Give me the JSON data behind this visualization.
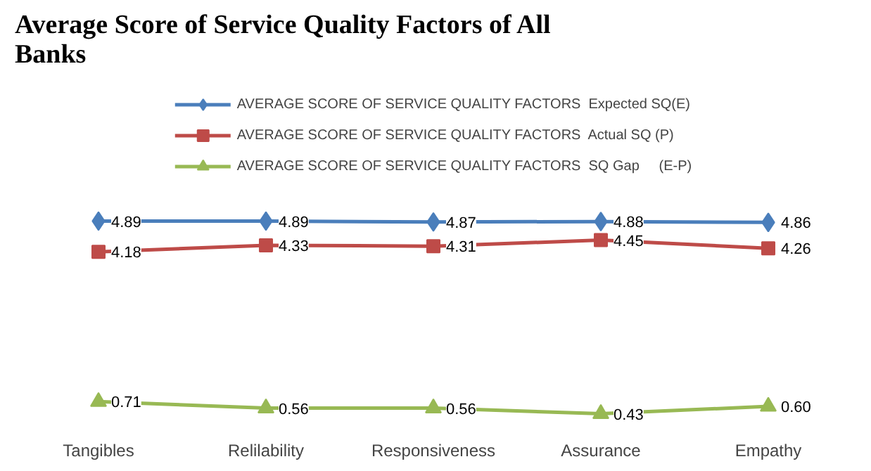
{
  "chart_data": {
    "type": "line",
    "title": "Average Score of Service Quality Factors of All\nBanks",
    "categories": [
      "Tangibles",
      "Relilability",
      "Responsiveness",
      "Assurance",
      "Empathy"
    ],
    "grid": false,
    "legend": "top",
    "series": [
      {
        "name": "AVERAGE SCORE OF SERVICE QUALITY FACTORS  Expected SQ(E)",
        "color": "#4a7ebb",
        "marker": "diamond",
        "values": [
          4.89,
          4.89,
          4.87,
          4.88,
          4.86
        ],
        "value_labels": [
          "4.89",
          "4.89",
          "4.87",
          "4.88",
          "4.86"
        ]
      },
      {
        "name": "AVERAGE SCORE OF SERVICE QUALITY FACTORS  Actual SQ (P)",
        "color": "#be4b48",
        "marker": "square",
        "values": [
          4.18,
          4.33,
          4.31,
          4.45,
          4.26
        ],
        "value_labels": [
          "4.18",
          "4.33",
          "4.31",
          "4.45",
          "4.26"
        ]
      },
      {
        "name": "AVERAGE SCORE OF SERVICE QUALITY FACTORS  SQ Gap     (E-P)",
        "color": "#98b954",
        "marker": "triangle",
        "values": [
          0.71,
          0.56,
          0.56,
          0.43,
          0.6
        ],
        "value_labels": [
          "0.71",
          "0.56",
          "0.56",
          "0.43",
          "0.60"
        ]
      }
    ]
  }
}
